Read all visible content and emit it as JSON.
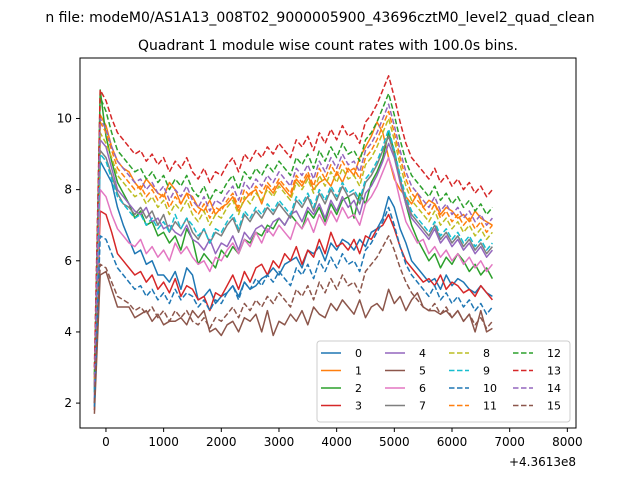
{
  "figure": {
    "suptitle": "n file: modeM0/AS1A13_008T02_9000005900_43696cztM0_level2_quad_clean",
    "title": "Quadrant 1 module wise count rates with 100.0s bins.",
    "x_offset_label": "+4.3613e8"
  },
  "chart_data": {
    "type": "line",
    "title": "Quadrant 1 module wise count rates with 100.0s bins.",
    "xlabel": "",
    "ylabel": "",
    "x_offset": "+4.3613e8",
    "xlim": [
      -450,
      8150
    ],
    "ylim": [
      1.3,
      11.7
    ],
    "x_ticks": [
      0,
      1000,
      2000,
      3000,
      4000,
      5000,
      6000,
      7000,
      8000
    ],
    "x_tick_labels": [
      "0",
      "1000",
      "2000",
      "3000",
      "4000",
      "5000",
      "6000",
      "7000",
      "8000"
    ],
    "y_ticks": [
      2,
      4,
      6,
      8,
      10
    ],
    "y_tick_labels": [
      "2",
      "4",
      "6",
      "8",
      "10"
    ],
    "grid": false,
    "legend_position": "lower-right",
    "legend_columns": 4,
    "x_start": -200,
    "x_step": 100,
    "series": [
      {
        "name": "0",
        "color": "#1f77b4",
        "dash": "solid",
        "values": [
          2.0,
          8.8,
          8.5,
          8.2,
          7.5,
          7.0,
          6.6,
          6.2,
          6.3,
          5.9,
          6.0,
          5.6,
          5.6,
          5.4,
          5.7,
          5.2,
          5.8,
          5.6,
          4.9,
          5.0,
          5.2,
          4.8,
          5.0,
          5.1,
          5.3,
          5.0,
          5.4,
          5.2,
          5.3,
          5.5,
          5.6,
          5.8,
          5.6,
          5.9,
          6.0,
          6.1,
          5.8,
          6.3,
          6.2,
          6.4,
          6.0,
          6.5,
          6.3,
          6.6,
          6.5,
          6.3,
          6.6,
          6.4,
          6.8,
          6.9,
          7.2,
          7.8,
          7.5,
          6.9,
          6.5,
          6.0,
          5.8,
          5.6,
          5.4,
          5.5,
          5.2,
          5.6,
          5.3,
          5.5,
          5.4,
          5.2,
          5.1,
          5.3,
          5.1,
          5.0
        ]
      },
      {
        "name": "1",
        "color": "#ff7f0e",
        "dash": "solid",
        "values": [
          2.5,
          10.1,
          9.8,
          9.2,
          8.8,
          8.6,
          8.5,
          8.2,
          8.0,
          8.3,
          8.1,
          7.9,
          7.8,
          8.2,
          8.0,
          7.6,
          7.9,
          7.8,
          7.5,
          7.4,
          7.7,
          7.3,
          7.5,
          7.6,
          7.8,
          7.4,
          7.7,
          7.9,
          8.0,
          7.6,
          8.1,
          7.9,
          8.2,
          8.0,
          7.8,
          8.3,
          8.1,
          8.4,
          8.0,
          8.2,
          8.3,
          8.1,
          8.5,
          8.2,
          8.6,
          8.4,
          8.9,
          9.2,
          9.5,
          9.9,
          9.6,
          8.9,
          8.3,
          8.0,
          7.8,
          7.6,
          7.9,
          7.5,
          7.7,
          7.6,
          7.3,
          7.5,
          7.4,
          7.2,
          7.3,
          7.1,
          7.4,
          7.2,
          7.1,
          7.0
        ]
      },
      {
        "name": "2",
        "color": "#2ca02c",
        "dash": "solid",
        "values": [
          2.3,
          10.8,
          9.5,
          8.8,
          8.2,
          7.9,
          7.6,
          7.2,
          7.4,
          7.0,
          7.1,
          6.7,
          6.8,
          6.5,
          6.7,
          6.3,
          6.9,
          6.6,
          5.9,
          6.2,
          6.0,
          5.8,
          6.3,
          6.1,
          6.4,
          6.2,
          6.6,
          6.5,
          6.8,
          6.7,
          7.0,
          6.9,
          7.2,
          7.0,
          7.3,
          7.1,
          6.9,
          7.4,
          7.2,
          7.5,
          7.1,
          7.6,
          7.3,
          7.7,
          7.8,
          7.2,
          7.9,
          7.6,
          8.2,
          8.5,
          8.9,
          9.6,
          9.1,
          8.3,
          7.6,
          7.0,
          6.6,
          6.3,
          6.0,
          6.2,
          5.8,
          6.1,
          5.9,
          6.2,
          6.0,
          5.7,
          5.9,
          5.6,
          5.8,
          5.5
        ]
      },
      {
        "name": "3",
        "color": "#d62728",
        "dash": "solid",
        "values": [
          1.8,
          7.4,
          7.3,
          6.8,
          6.2,
          6.0,
          5.8,
          5.6,
          5.7,
          5.4,
          5.6,
          5.2,
          5.4,
          5.1,
          5.5,
          5.0,
          5.3,
          5.2,
          4.9,
          5.0,
          4.6,
          5.1,
          5.0,
          5.3,
          5.6,
          5.2,
          5.7,
          5.4,
          5.8,
          5.9,
          5.6,
          6.0,
          5.8,
          6.2,
          6.0,
          6.4,
          5.9,
          6.3,
          6.1,
          6.6,
          6.2,
          6.8,
          6.4,
          6.5,
          6.3,
          6.6,
          6.2,
          6.7,
          6.6,
          6.9,
          7.0,
          7.3,
          6.9,
          6.4,
          6.0,
          5.8,
          5.6,
          5.4,
          5.5,
          5.3,
          5.6,
          5.2,
          5.4,
          5.3,
          5.1,
          5.2,
          5.0,
          5.3,
          5.1,
          4.9
        ]
      },
      {
        "name": "4",
        "color": "#9467bd",
        "dash": "solid",
        "values": [
          2.1,
          9.4,
          9.2,
          8.6,
          8.0,
          7.8,
          7.6,
          7.4,
          7.3,
          7.5,
          7.1,
          7.2,
          6.9,
          7.0,
          6.8,
          6.7,
          7.0,
          6.6,
          6.5,
          6.3,
          6.6,
          6.2,
          6.5,
          6.4,
          6.7,
          6.3,
          6.8,
          6.6,
          6.9,
          7.0,
          6.8,
          7.1,
          7.2,
          7.0,
          7.3,
          7.4,
          7.1,
          7.5,
          7.3,
          7.6,
          7.2,
          7.7,
          7.4,
          7.8,
          7.5,
          7.7,
          7.3,
          7.9,
          8.1,
          8.4,
          8.8,
          9.3,
          8.9,
          8.2,
          7.6,
          7.2,
          7.0,
          6.8,
          6.6,
          6.9,
          6.5,
          6.7,
          6.4,
          6.6,
          6.3,
          6.5,
          6.2,
          6.4,
          6.1,
          6.3
        ]
      },
      {
        "name": "5",
        "color": "#8c564b",
        "dash": "solid",
        "values": [
          1.7,
          5.6,
          5.7,
          5.2,
          4.7,
          4.7,
          4.7,
          4.4,
          4.5,
          4.6,
          4.3,
          4.5,
          4.2,
          4.3,
          4.3,
          4.4,
          4.2,
          4.6,
          4.4,
          4.6,
          4.0,
          4.1,
          3.9,
          4.2,
          4.3,
          4.0,
          4.4,
          4.3,
          4.5,
          4.0,
          4.6,
          3.9,
          4.3,
          4.2,
          4.5,
          4.3,
          4.6,
          4.2,
          4.7,
          4.5,
          4.4,
          4.8,
          4.6,
          4.9,
          4.7,
          4.5,
          4.9,
          4.4,
          4.7,
          4.8,
          4.6,
          5.2,
          4.8,
          5.0,
          4.6,
          4.9,
          5.1,
          4.7,
          4.6,
          4.6,
          4.5,
          4.6,
          4.4,
          4.6,
          4.3,
          4.5,
          4.0,
          4.6,
          4.0,
          4.1
        ]
      },
      {
        "name": "6",
        "color": "#e377c2",
        "dash": "solid",
        "values": [
          2.2,
          8.0,
          7.8,
          7.3,
          6.9,
          6.7,
          6.5,
          6.4,
          6.6,
          6.2,
          6.4,
          6.1,
          6.3,
          6.0,
          6.5,
          6.2,
          6.4,
          6.1,
          5.9,
          6.0,
          5.7,
          6.1,
          6.0,
          6.3,
          6.5,
          6.2,
          6.6,
          6.4,
          6.8,
          6.5,
          6.9,
          6.7,
          7.0,
          6.8,
          6.6,
          7.1,
          6.9,
          7.2,
          6.8,
          7.3,
          7.0,
          7.4,
          7.1,
          7.5,
          7.2,
          7.3,
          7.0,
          7.6,
          7.8,
          8.1,
          8.5,
          8.9,
          8.4,
          7.7,
          7.1,
          6.8,
          6.5,
          6.6,
          6.2,
          6.4,
          6.1,
          6.3,
          6.0,
          6.2,
          5.9,
          6.1,
          5.8,
          6.0,
          5.7,
          5.9
        ]
      },
      {
        "name": "7",
        "color": "#7f7f7f",
        "dash": "solid",
        "values": [
          2.4,
          9.1,
          8.9,
          8.4,
          7.9,
          7.6,
          7.5,
          7.3,
          7.5,
          7.2,
          7.4,
          7.0,
          7.3,
          6.8,
          7.1,
          6.9,
          7.2,
          6.8,
          6.6,
          6.9,
          6.5,
          6.8,
          6.7,
          7.0,
          7.2,
          6.8,
          7.3,
          7.1,
          7.4,
          7.2,
          7.5,
          7.3,
          7.6,
          7.4,
          7.2,
          7.7,
          7.5,
          7.8,
          7.4,
          7.9,
          7.6,
          8.0,
          7.7,
          8.1,
          7.8,
          7.9,
          7.6,
          8.2,
          8.4,
          8.7,
          9.1,
          9.5,
          9.0,
          8.3,
          7.7,
          7.3,
          7.1,
          6.9,
          6.7,
          7.0,
          6.6,
          6.8,
          6.5,
          6.7,
          6.4,
          6.6,
          6.3,
          6.5,
          6.2,
          6.4
        ]
      },
      {
        "name": "8",
        "color": "#bcbd22",
        "dash": "dashed",
        "values": [
          2.6,
          9.6,
          9.3,
          8.9,
          8.4,
          8.2,
          8.0,
          7.8,
          7.9,
          7.6,
          7.8,
          7.5,
          7.7,
          7.3,
          7.6,
          7.4,
          7.7,
          7.3,
          7.1,
          7.4,
          7.0,
          7.3,
          7.2,
          7.5,
          7.7,
          7.3,
          7.8,
          7.6,
          7.9,
          7.7,
          8.0,
          7.8,
          8.1,
          7.9,
          7.7,
          8.2,
          8.0,
          8.3,
          7.9,
          8.4,
          8.1,
          8.5,
          8.2,
          8.6,
          8.3,
          8.4,
          8.1,
          8.7,
          8.9,
          9.2,
          9.6,
          10.0,
          9.4,
          8.7,
          8.1,
          7.7,
          7.5,
          7.3,
          7.1,
          7.4,
          7.0,
          7.2,
          6.9,
          7.1,
          6.8,
          7.0,
          6.7,
          6.9,
          6.6,
          6.8
        ]
      },
      {
        "name": "9",
        "color": "#17becf",
        "dash": "dashed",
        "values": [
          2.3,
          9.0,
          8.8,
          8.3,
          7.8,
          7.6,
          7.4,
          7.2,
          7.3,
          7.0,
          7.2,
          6.9,
          7.1,
          6.8,
          7.3,
          6.9,
          7.2,
          7.0,
          6.7,
          6.9,
          6.5,
          6.9,
          6.8,
          7.1,
          7.3,
          6.9,
          7.4,
          7.2,
          7.5,
          7.3,
          7.6,
          7.4,
          7.7,
          7.5,
          7.3,
          7.8,
          7.6,
          7.9,
          7.5,
          8.0,
          7.7,
          8.1,
          7.8,
          8.2,
          7.9,
          8.0,
          7.7,
          8.3,
          8.5,
          8.8,
          9.2,
          9.7,
          9.1,
          8.4,
          7.8,
          7.4,
          7.2,
          7.0,
          6.8,
          7.1,
          6.7,
          6.9,
          6.6,
          6.8,
          6.5,
          6.7,
          6.4,
          6.6,
          6.3,
          6.5
        ]
      },
      {
        "name": "10",
        "color": "#1f77b4",
        "dash": "dashed",
        "values": [
          1.9,
          6.7,
          6.6,
          6.2,
          5.8,
          5.6,
          5.4,
          5.2,
          5.3,
          5.0,
          5.2,
          4.9,
          5.1,
          4.8,
          5.2,
          4.9,
          5.1,
          5.0,
          4.7,
          4.9,
          4.6,
          4.9,
          4.8,
          5.1,
          5.3,
          4.9,
          5.4,
          5.2,
          5.5,
          5.3,
          5.6,
          5.4,
          5.7,
          5.5,
          5.3,
          5.8,
          5.6,
          5.9,
          5.5,
          6.0,
          5.7,
          6.1,
          5.8,
          6.2,
          5.9,
          6.0,
          5.7,
          6.3,
          6.5,
          6.8,
          7.1,
          7.5,
          7.0,
          6.4,
          5.9,
          5.6,
          5.4,
          5.2,
          5.0,
          5.3,
          4.9,
          5.1,
          4.8,
          5.0,
          4.7,
          4.9,
          4.6,
          4.8,
          4.5,
          4.7
        ]
      },
      {
        "name": "11",
        "color": "#ff7f0e",
        "dash": "dashed",
        "values": [
          2.7,
          9.9,
          9.6,
          9.1,
          8.6,
          8.4,
          8.2,
          8.0,
          8.1,
          7.8,
          8.0,
          7.7,
          7.9,
          7.5,
          7.8,
          7.6,
          7.9,
          7.5,
          7.3,
          7.6,
          7.2,
          7.5,
          7.4,
          7.7,
          7.9,
          7.5,
          8.0,
          7.8,
          8.1,
          7.9,
          8.2,
          8.0,
          8.3,
          8.1,
          7.9,
          8.4,
          8.2,
          8.5,
          8.1,
          8.6,
          8.3,
          8.7,
          8.4,
          8.8,
          8.5,
          8.6,
          8.3,
          8.9,
          9.1,
          9.4,
          9.8,
          10.2,
          9.6,
          8.9,
          8.3,
          7.9,
          7.7,
          7.5,
          7.3,
          7.6,
          7.2,
          7.4,
          7.1,
          7.3,
          7.0,
          7.2,
          6.9,
          7.1,
          6.8,
          7.0
        ]
      },
      {
        "name": "12",
        "color": "#2ca02c",
        "dash": "dashed",
        "values": [
          2.8,
          10.6,
          10.2,
          9.6,
          9.1,
          8.9,
          8.7,
          8.5,
          8.6,
          8.3,
          8.5,
          8.2,
          8.4,
          8.0,
          8.3,
          8.1,
          8.4,
          8.0,
          7.8,
          8.1,
          7.7,
          8.0,
          7.9,
          8.2,
          8.4,
          8.0,
          8.5,
          8.3,
          8.6,
          8.4,
          8.7,
          8.5,
          8.8,
          8.6,
          8.4,
          8.9,
          8.7,
          9.0,
          8.6,
          9.1,
          8.8,
          9.2,
          8.9,
          9.3,
          9.0,
          9.1,
          8.8,
          9.4,
          9.6,
          9.9,
          10.3,
          10.7,
          10.1,
          9.4,
          8.8,
          8.4,
          8.2,
          8.0,
          7.8,
          8.1,
          7.7,
          7.9,
          7.6,
          7.8,
          7.5,
          7.7,
          7.4,
          7.6,
          7.3,
          7.5
        ]
      },
      {
        "name": "13",
        "color": "#d62728",
        "dash": "dashed",
        "values": [
          3.0,
          10.8,
          10.5,
          10.0,
          9.6,
          9.4,
          9.2,
          9.0,
          9.1,
          8.8,
          9.0,
          8.7,
          8.9,
          8.5,
          8.8,
          8.6,
          8.9,
          8.5,
          8.3,
          8.6,
          8.2,
          8.5,
          8.4,
          8.7,
          8.9,
          8.5,
          9.0,
          8.8,
          9.1,
          8.9,
          9.2,
          9.0,
          9.3,
          9.1,
          8.9,
          9.4,
          9.2,
          9.5,
          9.1,
          9.6,
          9.3,
          9.7,
          9.4,
          9.8,
          9.5,
          9.6,
          9.3,
          9.9,
          10.1,
          10.4,
          10.8,
          11.2,
          10.6,
          9.9,
          9.3,
          8.9,
          8.7,
          8.5,
          8.3,
          8.6,
          8.2,
          8.4,
          8.1,
          8.3,
          8.0,
          8.2,
          7.9,
          8.1,
          7.8,
          8.0
        ]
      },
      {
        "name": "14",
        "color": "#9467bd",
        "dash": "dashed",
        "values": [
          2.5,
          10.0,
          9.7,
          9.2,
          8.8,
          8.6,
          8.4,
          8.2,
          8.3,
          8.0,
          8.2,
          7.9,
          8.1,
          7.7,
          8.0,
          7.8,
          8.1,
          7.7,
          7.5,
          7.8,
          7.4,
          7.7,
          7.6,
          7.9,
          8.1,
          7.7,
          8.2,
          8.0,
          8.3,
          8.1,
          8.4,
          8.2,
          8.5,
          8.3,
          8.1,
          8.6,
          8.4,
          8.7,
          8.3,
          8.8,
          8.5,
          8.9,
          8.6,
          9.0,
          8.7,
          8.8,
          8.5,
          9.1,
          9.3,
          9.6,
          10.0,
          10.4,
          9.8,
          9.1,
          8.5,
          8.1,
          7.9,
          7.7,
          7.5,
          7.8,
          7.4,
          7.6,
          7.3,
          7.5,
          7.2,
          7.4,
          7.1,
          7.3,
          7.0,
          7.2
        ]
      },
      {
        "name": "15",
        "color": "#8c564b",
        "dash": "dashed",
        "values": [
          2.0,
          5.9,
          5.8,
          5.4,
          5.0,
          4.9,
          4.8,
          4.6,
          4.7,
          4.5,
          4.7,
          4.4,
          4.6,
          4.3,
          4.6,
          4.4,
          4.6,
          4.3,
          4.2,
          4.4,
          4.1,
          4.4,
          4.3,
          4.5,
          4.7,
          4.4,
          4.8,
          4.6,
          4.9,
          4.7,
          5.0,
          4.8,
          5.1,
          4.9,
          4.7,
          5.2,
          5.0,
          5.3,
          4.9,
          5.4,
          5.1,
          5.5,
          5.2,
          5.6,
          5.3,
          5.4,
          5.1,
          5.7,
          5.9,
          6.1,
          6.4,
          6.7,
          6.3,
          5.8,
          5.4,
          5.1,
          4.9,
          4.7,
          4.6,
          4.8,
          4.5,
          4.7,
          4.4,
          4.6,
          4.3,
          4.5,
          4.2,
          4.4,
          4.1,
          4.3
        ]
      }
    ]
  }
}
